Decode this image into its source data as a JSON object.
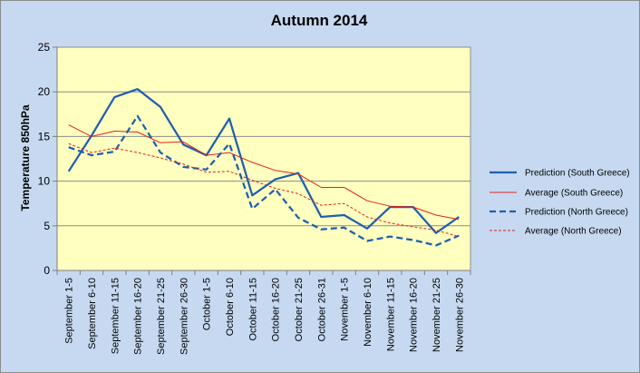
{
  "chart_data": {
    "type": "line",
    "title": "Autumn 2014",
    "xlabel": "",
    "ylabel": "Temperature 850hPa",
    "ylim": [
      0,
      25
    ],
    "yticks": [
      0,
      5,
      10,
      15,
      20,
      25
    ],
    "grid": true,
    "legend_position": "right",
    "categories": [
      "September 1-5",
      "September 6-10",
      "September 11-15",
      "September 16-20",
      "September 21-25",
      "September 26-30",
      "October 1-5",
      "October 6-10",
      "October 11-15",
      "October 16-20",
      "October 21-25",
      "October 26-31",
      "November 1-5",
      "November 6-10",
      "November 11-15",
      "November 16-20",
      "November 21-25",
      "November 26-30"
    ],
    "series": [
      {
        "name": "Prediction (South Greece)",
        "color": "#1f5fae",
        "style": "solid-thick",
        "values": [
          11.1,
          15.1,
          19.4,
          20.3,
          18.3,
          14.1,
          12.9,
          17.0,
          8.4,
          10.2,
          10.9,
          6.0,
          6.2,
          4.7,
          7.1,
          7.1,
          4.2,
          6.0
        ]
      },
      {
        "name": "Average (South Greece)",
        "color": "#e0231b",
        "style": "solid-thin",
        "values": [
          16.3,
          15.0,
          15.6,
          15.5,
          14.3,
          14.4,
          12.9,
          13.2,
          12.1,
          11.2,
          10.8,
          9.3,
          9.3,
          7.8,
          7.2,
          7.1,
          6.2,
          5.7
        ]
      },
      {
        "name": "Prediction (North Greece)",
        "color": "#1f5fae",
        "style": "dashed-thick",
        "values": [
          13.8,
          12.9,
          13.3,
          17.3,
          13.2,
          11.6,
          11.3,
          14.2,
          6.9,
          9.1,
          5.9,
          4.6,
          4.8,
          3.3,
          3.8,
          3.4,
          2.8,
          3.9
        ]
      },
      {
        "name": "Average (North Greece)",
        "color": "#e0231b",
        "style": "dashed-thin",
        "values": [
          14.2,
          13.2,
          13.7,
          13.2,
          12.6,
          11.9,
          11.0,
          11.1,
          10.1,
          9.2,
          8.6,
          7.3,
          7.5,
          6.0,
          5.3,
          4.9,
          4.5,
          3.8
        ]
      }
    ]
  }
}
